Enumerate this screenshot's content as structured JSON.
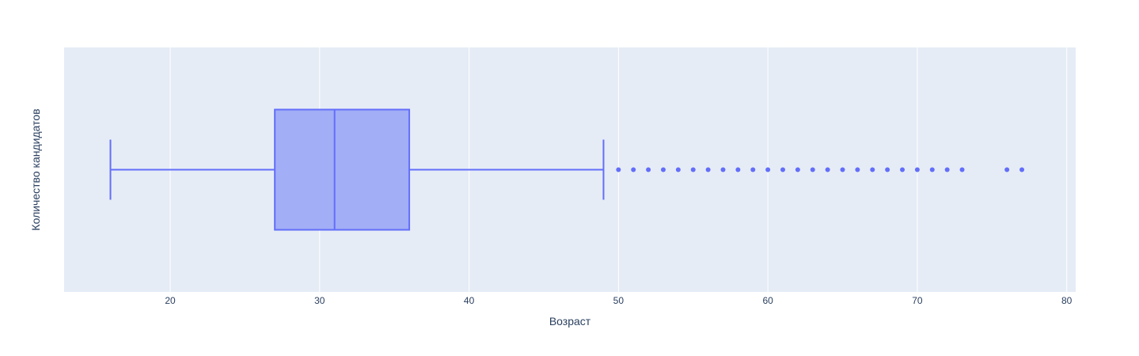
{
  "colors": {
    "plot_bg": "#E5ECF6",
    "grid": "#ffffff",
    "box_fill": "#A2AEF5",
    "box_line": "#636EFA",
    "text": "#2a3f5f"
  },
  "chart_data": {
    "type": "box",
    "orientation": "horizontal",
    "xlabel": "Возраст",
    "ylabel": "Количество кандидатов",
    "xlim": [
      12.9,
      80.6
    ],
    "xticks": [
      20,
      30,
      40,
      50,
      60,
      70,
      80
    ],
    "xtick_labels": [
      "20",
      "30",
      "40",
      "50",
      "60",
      "70",
      "80"
    ],
    "grid": true,
    "box": {
      "lower_fence": 16,
      "q1": 27,
      "median": 31,
      "q3": 36,
      "upper_fence": 49
    },
    "outliers": [
      50,
      51,
      52,
      53,
      54,
      55,
      56,
      57,
      58,
      59,
      60,
      61,
      62,
      63,
      64,
      65,
      66,
      67,
      68,
      69,
      70,
      71,
      72,
      73,
      76,
      77
    ]
  }
}
